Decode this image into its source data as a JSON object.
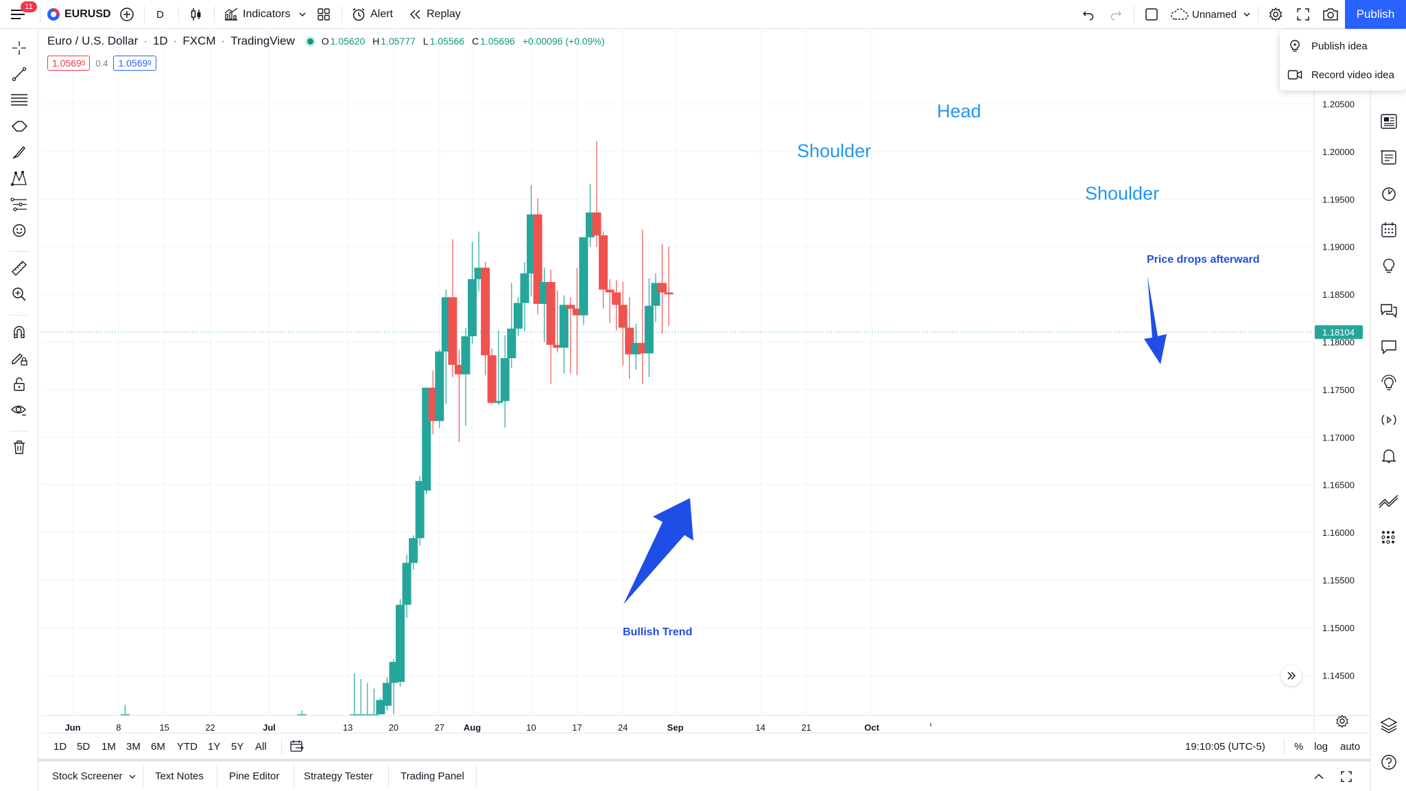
{
  "topbar": {
    "menu_badge": "11",
    "symbol": "EURUSD",
    "interval": "D",
    "indicators_label": "Indicators",
    "alert_label": "Alert",
    "replay_label": "Replay",
    "layout_name": "Unnamed",
    "publish_label": "Publish"
  },
  "publish_menu": {
    "items": [
      {
        "label": "Publish idea",
        "icon": "lightbulb-icon"
      },
      {
        "label": "Record video idea",
        "icon": "video-camera-icon"
      }
    ]
  },
  "legend": {
    "title": "Euro / U.S. Dollar",
    "interval": "1D",
    "exchange": "FXCM",
    "source": "TradingView",
    "o_key": "O",
    "o": "1.05620",
    "h_key": "H",
    "h": "1.05777",
    "l_key": "L",
    "l": "1.05566",
    "c_key": "C",
    "c": "1.05696",
    "change": "+0.00096 (+0.09%)",
    "sell_price": "1.0569",
    "sell_price_sup": "5",
    "spread": "0.4",
    "buy_price": "1.0569",
    "buy_price_sup": "9"
  },
  "colors": {
    "up": "#26a69a",
    "down": "#ef5350",
    "annotation_blue": "#2196f3",
    "arrow_blue": "#1f4ee6",
    "accent": "#2962ff"
  },
  "chart_data": {
    "type": "candlestick",
    "symbol": "EURUSD",
    "interval": "1D",
    "price_axis": {
      "ticks": [
        "1.20500",
        "1.20000",
        "1.19500",
        "1.19000",
        "1.18500",
        "1.18000",
        "1.17500",
        "1.17000",
        "1.16500",
        "1.16000",
        "1.15500",
        "1.15000",
        "1.14500"
      ],
      "range": [
        1.1405,
        1.2113
      ],
      "last_price_label": "1.18104",
      "last_price": 1.18104
    },
    "time_axis": {
      "labels": [
        {
          "text": "Jun",
          "bold": true,
          "day": 0
        },
        {
          "text": "8",
          "bold": false,
          "day": 7
        },
        {
          "text": "15",
          "bold": false,
          "day": 14
        },
        {
          "text": "22",
          "bold": false,
          "day": 21
        },
        {
          "text": "Jul",
          "bold": true,
          "day": 30
        },
        {
          "text": "13",
          "bold": false,
          "day": 42
        },
        {
          "text": "20",
          "bold": false,
          "day": 49
        },
        {
          "text": "27",
          "bold": false,
          "day": 56
        },
        {
          "text": "Aug",
          "bold": true,
          "day": 61
        },
        {
          "text": "10",
          "bold": false,
          "day": 70
        },
        {
          "text": "17",
          "bold": false,
          "day": 77
        },
        {
          "text": "24",
          "bold": false,
          "day": 84
        },
        {
          "text": "Sep",
          "bold": true,
          "day": 92
        },
        {
          "text": "14",
          "bold": false,
          "day": 105
        },
        {
          "text": "21",
          "bold": false,
          "day": 112
        },
        {
          "text": "Oct",
          "bold": true,
          "day": 122
        }
      ],
      "last_day": 131
    },
    "candles": [
      {
        "d": 8,
        "o": 1.1409,
        "h": 1.1419,
        "l": 1.1409,
        "c": 1.1409
      },
      {
        "d": 35,
        "o": 1.1409,
        "h": 1.1413,
        "l": 1.1409,
        "c": 1.1409
      },
      {
        "d": 43,
        "o": 1.1409,
        "h": 1.1452,
        "l": 1.1409,
        "c": 1.1409
      },
      {
        "d": 44,
        "o": 1.1409,
        "h": 1.1446,
        "l": 1.1409,
        "c": 1.1409
      },
      {
        "d": 45,
        "o": 1.1409,
        "h": 1.1442,
        "l": 1.1409,
        "c": 1.1409
      },
      {
        "d": 46,
        "o": 1.1409,
        "h": 1.1436,
        "l": 1.1409,
        "c": 1.1409
      },
      {
        "d": 47,
        "o": 1.1409,
        "h": 1.1426,
        "l": 1.1409,
        "c": 1.1424
      },
      {
        "d": 48,
        "o": 1.1418,
        "h": 1.1448,
        "l": 1.1413,
        "c": 1.1442
      },
      {
        "d": 49,
        "o": 1.1442,
        "h": 1.1467,
        "l": 1.1409,
        "c": 1.1464
      },
      {
        "d": 50,
        "o": 1.1443,
        "h": 1.153,
        "l": 1.1438,
        "c": 1.1524
      },
      {
        "d": 51,
        "o": 1.1524,
        "h": 1.1577,
        "l": 1.151,
        "c": 1.1568
      },
      {
        "d": 52,
        "o": 1.1568,
        "h": 1.1597,
        "l": 1.1561,
        "c": 1.1594
      },
      {
        "d": 53,
        "o": 1.1594,
        "h": 1.1659,
        "l": 1.1586,
        "c": 1.1654
      },
      {
        "d": 54,
        "o": 1.1644,
        "h": 1.1752,
        "l": 1.164,
        "c": 1.1752
      },
      {
        "d": 55,
        "o": 1.1752,
        "h": 1.177,
        "l": 1.1703,
        "c": 1.1717
      },
      {
        "d": 56,
        "o": 1.1717,
        "h": 1.1792,
        "l": 1.171,
        "c": 1.179
      },
      {
        "d": 57,
        "o": 1.179,
        "h": 1.1855,
        "l": 1.1735,
        "c": 1.1847
      },
      {
        "d": 58,
        "o": 1.1847,
        "h": 1.1908,
        "l": 1.1763,
        "c": 1.1776
      },
      {
        "d": 59,
        "o": 1.1776,
        "h": 1.1792,
        "l": 1.1695,
        "c": 1.1766
      },
      {
        "d": 60,
        "o": 1.1766,
        "h": 1.1815,
        "l": 1.1712,
        "c": 1.1806
      },
      {
        "d": 61,
        "o": 1.1806,
        "h": 1.1905,
        "l": 1.1798,
        "c": 1.1866
      },
      {
        "d": 62,
        "o": 1.1866,
        "h": 1.1916,
        "l": 1.1853,
        "c": 1.1878
      },
      {
        "d": 63,
        "o": 1.1878,
        "h": 1.1884,
        "l": 1.1765,
        "c": 1.1786
      },
      {
        "d": 64,
        "o": 1.1786,
        "h": 1.1793,
        "l": 1.1735,
        "c": 1.1736
      },
      {
        "d": 65,
        "o": 1.1736,
        "h": 1.1812,
        "l": 1.1734,
        "c": 1.1738
      },
      {
        "d": 66,
        "o": 1.1738,
        "h": 1.1807,
        "l": 1.171,
        "c": 1.1783
      },
      {
        "d": 67,
        "o": 1.1783,
        "h": 1.1862,
        "l": 1.1773,
        "c": 1.1814
      },
      {
        "d": 68,
        "o": 1.1814,
        "h": 1.1847,
        "l": 1.1806,
        "c": 1.1841
      },
      {
        "d": 69,
        "o": 1.1841,
        "h": 1.1884,
        "l": 1.1811,
        "c": 1.1872
      },
      {
        "d": 70,
        "o": 1.1872,
        "h": 1.1965,
        "l": 1.1848,
        "c": 1.1934
      },
      {
        "d": 71,
        "o": 1.1934,
        "h": 1.1951,
        "l": 1.1829,
        "c": 1.184
      },
      {
        "d": 72,
        "o": 1.184,
        "h": 1.1878,
        "l": 1.18,
        "c": 1.1863
      },
      {
        "d": 73,
        "o": 1.1863,
        "h": 1.1876,
        "l": 1.1756,
        "c": 1.1797
      },
      {
        "d": 74,
        "o": 1.1797,
        "h": 1.1854,
        "l": 1.1789,
        "c": 1.1794
      },
      {
        "d": 75,
        "o": 1.1794,
        "h": 1.1849,
        "l": 1.1767,
        "c": 1.1839
      },
      {
        "d": 76,
        "o": 1.1839,
        "h": 1.1847,
        "l": 1.1767,
        "c": 1.1835
      },
      {
        "d": 77,
        "o": 1.1835,
        "h": 1.1878,
        "l": 1.1765,
        "c": 1.1828
      },
      {
        "d": 78,
        "o": 1.1828,
        "h": 1.1904,
        "l": 1.1818,
        "c": 1.191
      },
      {
        "d": 79,
        "o": 1.191,
        "h": 1.1966,
        "l": 1.19,
        "c": 1.1936
      },
      {
        "d": 80,
        "o": 1.1936,
        "h": 1.2011,
        "l": 1.19,
        "c": 1.1912
      },
      {
        "d": 81,
        "o": 1.1912,
        "h": 1.1916,
        "l": 1.1835,
        "c": 1.1855
      },
      {
        "d": 82,
        "o": 1.1855,
        "h": 1.1866,
        "l": 1.182,
        "c": 1.1852
      },
      {
        "d": 83,
        "o": 1.1852,
        "h": 1.1865,
        "l": 1.1812,
        "c": 1.1839
      },
      {
        "d": 84,
        "o": 1.1839,
        "h": 1.1863,
        "l": 1.1775,
        "c": 1.1815
      },
      {
        "d": 85,
        "o": 1.1815,
        "h": 1.1847,
        "l": 1.1761,
        "c": 1.1787
      },
      {
        "d": 86,
        "o": 1.1787,
        "h": 1.1819,
        "l": 1.1771,
        "c": 1.1799
      },
      {
        "d": 87,
        "o": 1.1799,
        "h": 1.1918,
        "l": 1.1756,
        "c": 1.1788
      },
      {
        "d": 88,
        "o": 1.1788,
        "h": 1.1867,
        "l": 1.1763,
        "c": 1.1838
      },
      {
        "d": 89,
        "o": 1.1838,
        "h": 1.1872,
        "l": 1.1821,
        "c": 1.1862
      },
      {
        "d": 90,
        "o": 1.1862,
        "h": 1.1903,
        "l": 1.1809,
        "c": 1.1852
      },
      {
        "d": 91,
        "o": 1.1852,
        "h": 1.19,
        "l": 1.1817,
        "c": 1.185
      }
    ],
    "annotations": [
      {
        "text": "Head",
        "style": "large"
      },
      {
        "text": "Shoulder",
        "style": "large"
      },
      {
        "text": "Shoulder",
        "style": "large"
      },
      {
        "text": "Price drops afterward",
        "style": "small-bold"
      },
      {
        "text": "Bullish Trend",
        "style": "small-bold"
      }
    ]
  },
  "rangebar": {
    "ranges": [
      "1D",
      "5D",
      "1M",
      "3M",
      "6M",
      "YTD",
      "1Y",
      "5Y",
      "All"
    ],
    "time": "19:10:05 (UTC-5)",
    "percent": "%",
    "log": "log",
    "auto": "auto"
  },
  "bottom_tabs": [
    "Stock Screener",
    "Text Notes",
    "Pine Editor",
    "Strategy Tester",
    "Trading Panel"
  ]
}
